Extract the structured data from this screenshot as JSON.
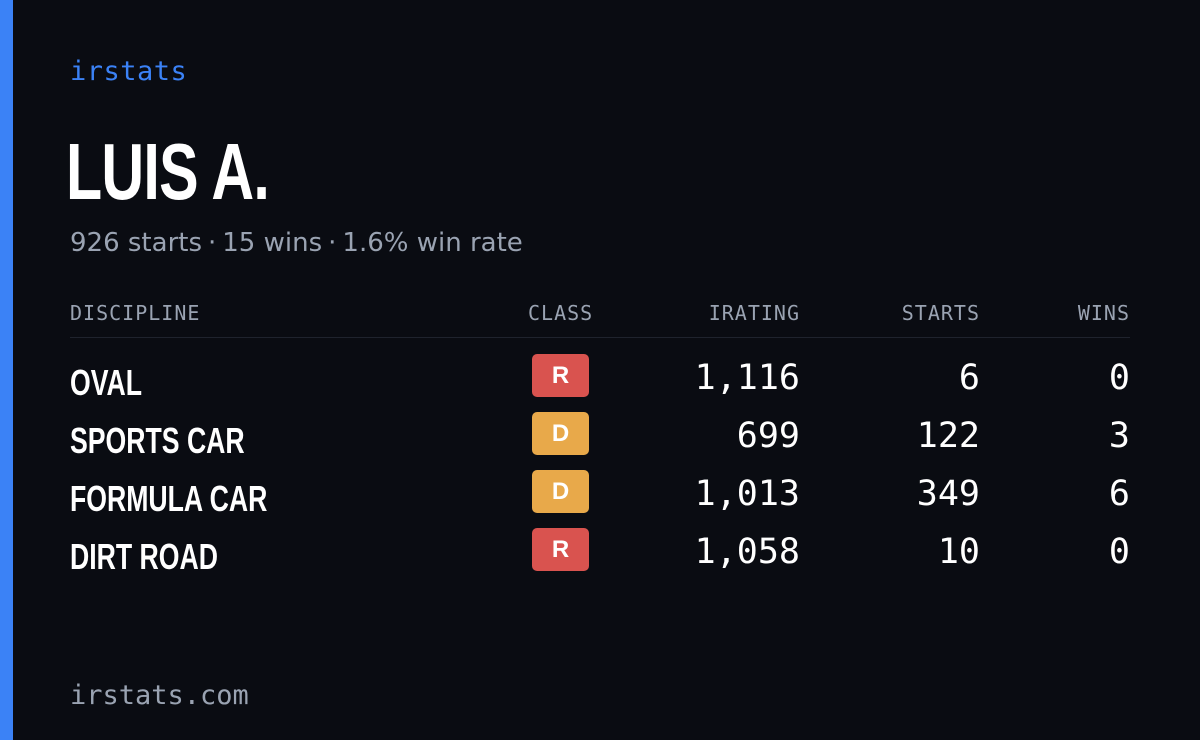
{
  "brand": "irstats",
  "driver": {
    "name": "LUIS A.",
    "starts": "926 starts",
    "wins": "15 wins",
    "win_rate": "1.6% win rate",
    "separator": "·"
  },
  "table": {
    "headers": {
      "discipline": "DISCIPLINE",
      "class": "CLASS",
      "irating": "IRATING",
      "starts": "STARTS",
      "wins": "WINS"
    },
    "rows": [
      {
        "discipline": "OVAL",
        "class": "R",
        "irating": "1,116",
        "starts": "6",
        "wins": "0"
      },
      {
        "discipline": "SPORTS CAR",
        "class": "D",
        "irating": "699",
        "starts": "122",
        "wins": "3"
      },
      {
        "discipline": "FORMULA CAR",
        "class": "D",
        "irating": "1,013",
        "starts": "349",
        "wins": "6"
      },
      {
        "discipline": "DIRT ROAD",
        "class": "R",
        "irating": "1,058",
        "starts": "10",
        "wins": "0"
      }
    ]
  },
  "footer": {
    "url": "irstats.com"
  },
  "colors": {
    "background": "#0a0c12",
    "accent": "#3b82f6",
    "muted_text": "#9aa3b2",
    "class_R": "#d9534f",
    "class_D": "#e8a94a"
  }
}
